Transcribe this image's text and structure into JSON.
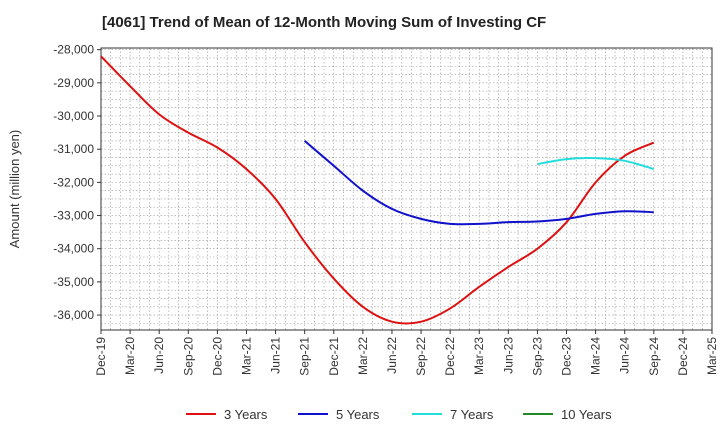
{
  "chart_data": {
    "type": "line",
    "title": "[4061]  Trend of Mean of 12-Month Moving Sum of Investing CF",
    "ylabel": "Amount (million yen)",
    "xlabel": "",
    "ylim": [
      -36450,
      -27950
    ],
    "yticks": [
      -28000,
      -29000,
      -30000,
      -31000,
      -32000,
      -33000,
      -34000,
      -35000,
      -36000
    ],
    "ytick_labels": [
      "-28,000",
      "-29,000",
      "-30,000",
      "-31,000",
      "-32,000",
      "-33,000",
      "-34,000",
      "-35,000",
      "-36,000"
    ],
    "x_start": "2019-12",
    "x_end": "2025-03",
    "xtick_labels": [
      "Dec-19",
      "Mar-20",
      "Jun-20",
      "Sep-20",
      "Dec-20",
      "Mar-21",
      "Jun-21",
      "Sep-21",
      "Dec-21",
      "Mar-22",
      "Jun-22",
      "Sep-22",
      "Dec-22",
      "Mar-23",
      "Jun-23",
      "Sep-23",
      "Dec-23",
      "Mar-24",
      "Jun-24",
      "Sep-24",
      "Dec-24",
      "Mar-25"
    ],
    "grid": true,
    "legend_position": "bottom",
    "series": [
      {
        "name": "3 Years",
        "color": "#dd1111",
        "points": [
          [
            "2019-12",
            -28200
          ],
          [
            "2020-03",
            -29100
          ],
          [
            "2020-06",
            -29950
          ],
          [
            "2020-09",
            -30500
          ],
          [
            "2020-12",
            -30950
          ],
          [
            "2021-03",
            -31600
          ],
          [
            "2021-06",
            -32500
          ],
          [
            "2021-09",
            -33800
          ],
          [
            "2021-12",
            -34900
          ],
          [
            "2022-03",
            -35750
          ],
          [
            "2022-06",
            -36200
          ],
          [
            "2022-09",
            -36200
          ],
          [
            "2022-12",
            -35800
          ],
          [
            "2023-03",
            -35150
          ],
          [
            "2023-06",
            -34550
          ],
          [
            "2023-09",
            -34000
          ],
          [
            "2023-12",
            -33200
          ],
          [
            "2024-03",
            -32000
          ],
          [
            "2024-06",
            -31200
          ],
          [
            "2024-09",
            -30800
          ]
        ]
      },
      {
        "name": "5 Years",
        "color": "#1111cc",
        "points": [
          [
            "2021-09",
            -30750
          ],
          [
            "2021-12",
            -31500
          ],
          [
            "2022-03",
            -32250
          ],
          [
            "2022-06",
            -32800
          ],
          [
            "2022-09",
            -33100
          ],
          [
            "2022-12",
            -33250
          ],
          [
            "2023-03",
            -33250
          ],
          [
            "2023-06",
            -33200
          ],
          [
            "2023-09",
            -33180
          ],
          [
            "2023-12",
            -33100
          ],
          [
            "2024-03",
            -32950
          ],
          [
            "2024-06",
            -32870
          ],
          [
            "2024-09",
            -32900
          ]
        ]
      },
      {
        "name": "7 Years",
        "color": "#22dddd",
        "points": [
          [
            "2023-09",
            -31450
          ],
          [
            "2023-12",
            -31300
          ],
          [
            "2024-03",
            -31270
          ],
          [
            "2024-06",
            -31350
          ],
          [
            "2024-09",
            -31600
          ]
        ]
      },
      {
        "name": "10 Years",
        "color": "#228822",
        "points": []
      }
    ]
  }
}
